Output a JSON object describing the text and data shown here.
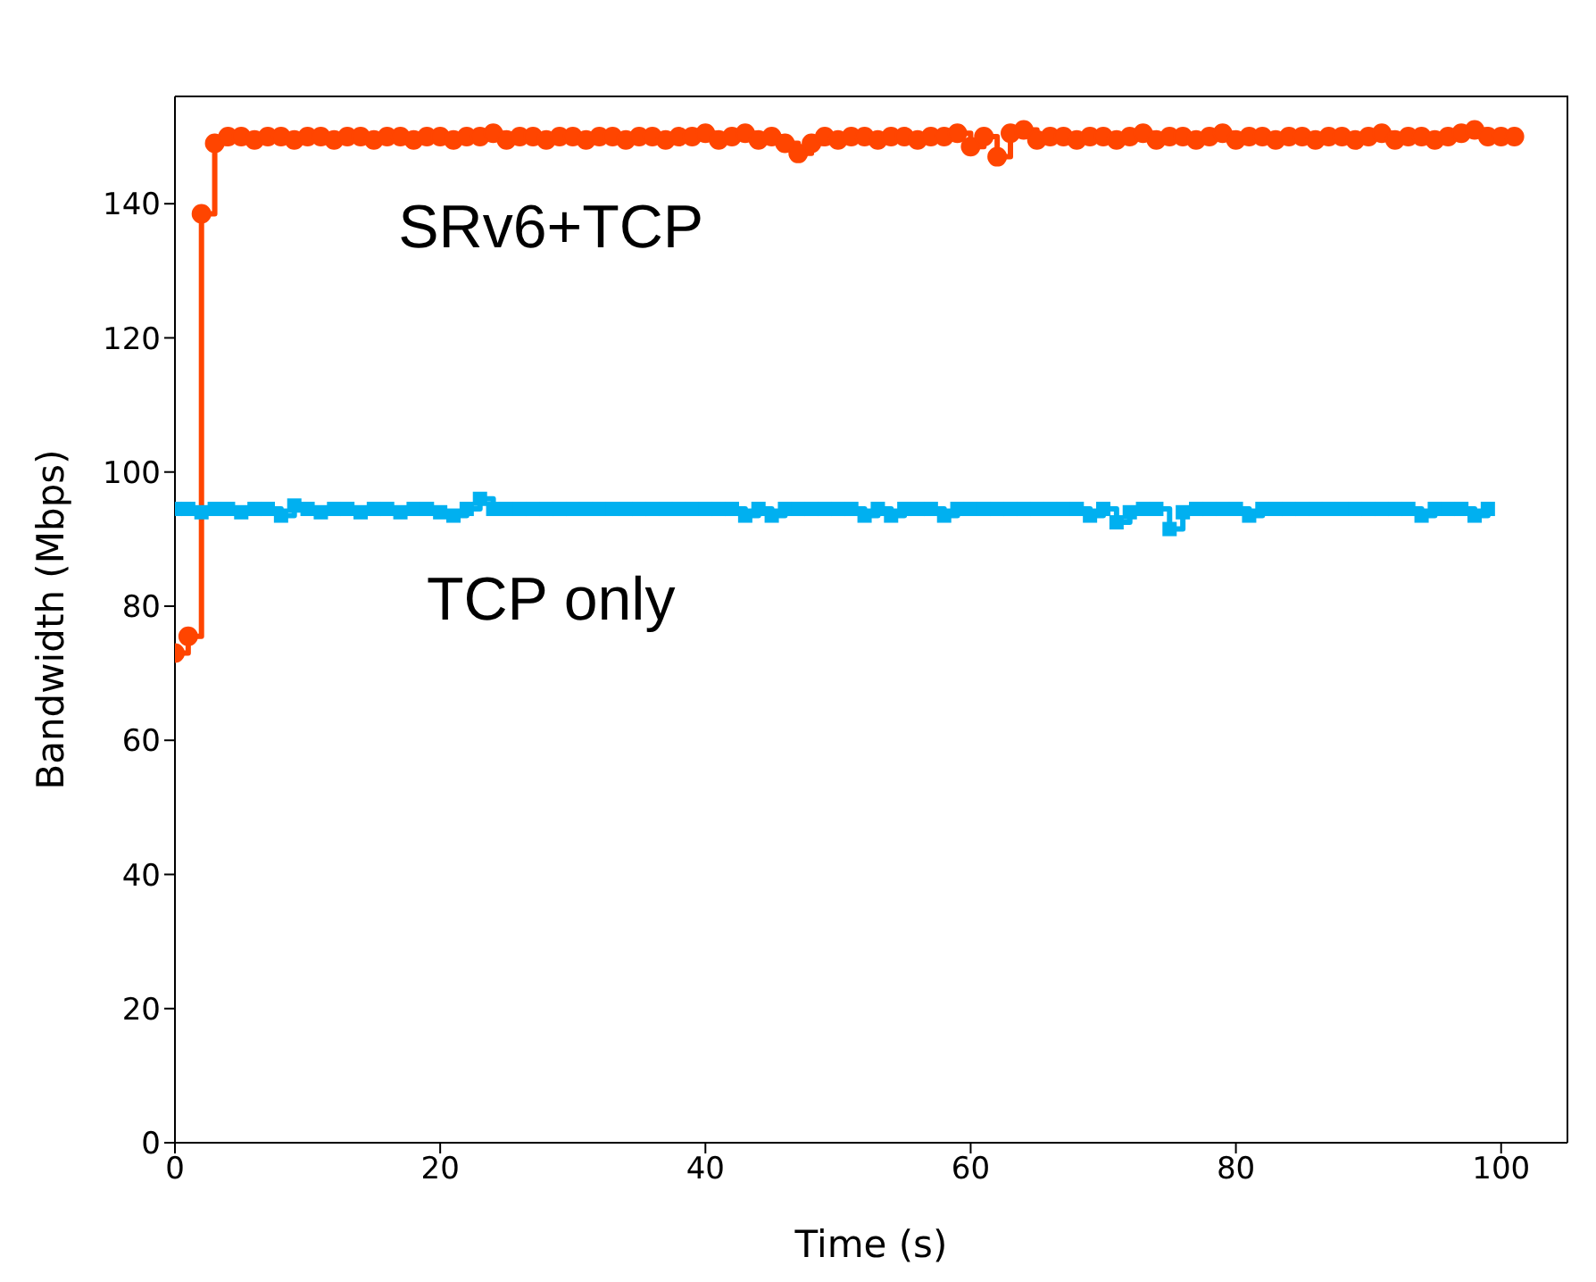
{
  "chart_data": {
    "type": "step",
    "xlabel": "Time (s)",
    "ylabel": "Bandwidth (Mbps)",
    "xlim": [
      0,
      105
    ],
    "ylim": [
      0,
      156
    ],
    "xticks": [
      0,
      20,
      40,
      60,
      80,
      100
    ],
    "yticks": [
      0,
      20,
      40,
      60,
      80,
      100,
      120,
      140
    ],
    "line_style": "solid",
    "series": [
      {
        "name": "SRv6+TCP",
        "color": "#ff4500",
        "marker": "circle",
        "x": [
          0,
          1,
          2,
          3,
          4,
          5,
          6,
          7,
          8,
          9,
          10,
          11,
          12,
          13,
          14,
          15,
          16,
          17,
          18,
          19,
          20,
          21,
          22,
          23,
          24,
          25,
          26,
          27,
          28,
          29,
          30,
          31,
          32,
          33,
          34,
          35,
          36,
          37,
          38,
          39,
          40,
          41,
          42,
          43,
          44,
          45,
          46,
          47,
          48,
          49,
          50,
          51,
          52,
          53,
          54,
          55,
          56,
          57,
          58,
          59,
          60,
          61,
          62,
          63,
          64,
          65,
          66,
          67,
          68,
          69,
          70,
          71,
          72,
          73,
          74,
          75,
          76,
          77,
          78,
          79,
          80,
          81,
          82,
          83,
          84,
          85,
          86,
          87,
          88,
          89,
          90,
          91,
          92,
          93,
          94,
          95,
          96,
          97,
          98,
          99,
          100,
          101
        ],
        "values": [
          73,
          75.5,
          138.5,
          149,
          150,
          150,
          149.5,
          150,
          150,
          149.5,
          150,
          150,
          149.5,
          150,
          150,
          149.5,
          150,
          150,
          149.5,
          150,
          150,
          149.5,
          150,
          150,
          150.5,
          149.5,
          150,
          150,
          149.5,
          150,
          150,
          149.5,
          150,
          150,
          149.5,
          150,
          150,
          149.5,
          150,
          150,
          150.5,
          149.5,
          150,
          150.5,
          149.5,
          150,
          149,
          147.5,
          149,
          150,
          149.5,
          150,
          150,
          149.5,
          150,
          150,
          149.5,
          150,
          150,
          150.5,
          148.5,
          150,
          147,
          150.5,
          151,
          149.5,
          150,
          150,
          149.5,
          150,
          150,
          149.5,
          150,
          150.5,
          149.5,
          150,
          150,
          149.5,
          150,
          150.5,
          149.5,
          150,
          150,
          149.5,
          150,
          150,
          149.5,
          150,
          150,
          149.5,
          150,
          150.5,
          149.5,
          150,
          150,
          149.5,
          150,
          150.5,
          151,
          150,
          150,
          150
        ]
      },
      {
        "name": "TCP only",
        "color": "#00b0f0",
        "marker": "square",
        "x": [
          0,
          1,
          2,
          3,
          4,
          5,
          6,
          7,
          8,
          9,
          10,
          11,
          12,
          13,
          14,
          15,
          16,
          17,
          18,
          19,
          20,
          21,
          22,
          23,
          24,
          25,
          26,
          27,
          28,
          29,
          30,
          31,
          32,
          33,
          34,
          35,
          36,
          37,
          38,
          39,
          40,
          41,
          42,
          43,
          44,
          45,
          46,
          47,
          48,
          49,
          50,
          51,
          52,
          53,
          54,
          55,
          56,
          57,
          58,
          59,
          60,
          61,
          62,
          63,
          64,
          65,
          66,
          67,
          68,
          69,
          70,
          71,
          72,
          73,
          74,
          75,
          76,
          77,
          78,
          79,
          80,
          81,
          82,
          83,
          84,
          85,
          86,
          87,
          88,
          89,
          90,
          91,
          92,
          93,
          94,
          95,
          96,
          97,
          98,
          99
        ],
        "values": [
          94.5,
          94.5,
          94,
          94.5,
          94.5,
          94,
          94.5,
          94.5,
          93.5,
          95,
          94.5,
          94,
          94.5,
          94.5,
          94,
          94.5,
          94.5,
          94,
          94.5,
          94.5,
          94,
          93.5,
          94.5,
          96,
          94.5,
          94.5,
          94.5,
          94.5,
          94.5,
          94.5,
          94.5,
          94.5,
          94.5,
          94.5,
          94.5,
          94.5,
          94.5,
          94.5,
          94.5,
          94.5,
          94.5,
          94.5,
          94.5,
          93.5,
          94.5,
          93.5,
          94.5,
          94.5,
          94.5,
          94.5,
          94.5,
          94.5,
          93.5,
          94.5,
          93.5,
          94.5,
          94.5,
          94.5,
          93.5,
          94.5,
          94.5,
          94.5,
          94.5,
          94.5,
          94.5,
          94.5,
          94.5,
          94.5,
          94.5,
          93.5,
          94.5,
          92.5,
          94,
          94.5,
          94.5,
          91.5,
          94,
          94.5,
          94.5,
          94.5,
          94.5,
          93.5,
          94.5,
          94.5,
          94.5,
          94.5,
          94.5,
          94.5,
          94.5,
          94.5,
          94.5,
          94.5,
          94.5,
          94.5,
          93.5,
          94.5,
          94.5,
          94.5,
          93.5,
          94.5
        ]
      }
    ]
  }
}
